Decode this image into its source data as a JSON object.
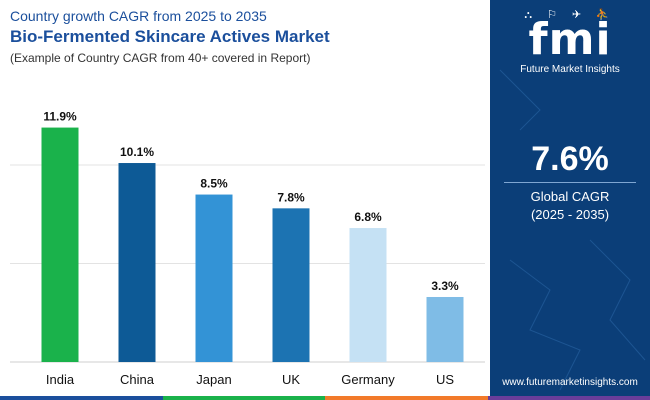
{
  "header": {
    "subtitle": "Country growth CAGR from 2025 to 2035",
    "title": "Bio-Fermented Skincare Actives Market",
    "note": "(Example of Country CAGR from 40+ covered in Report)"
  },
  "chart_data": {
    "type": "bar",
    "categories": [
      "India",
      "China",
      "Japan",
      "UK",
      "Germany",
      "US"
    ],
    "values": [
      11.9,
      10.1,
      8.5,
      7.8,
      6.8,
      3.3
    ],
    "value_labels": [
      "11.9%",
      "10.1%",
      "8.5%",
      "7.8%",
      "6.8%",
      "3.3%"
    ],
    "bar_colors": [
      "#1ab24b",
      "#0d5a96",
      "#3393d6",
      "#1c73b2",
      "#c5e1f4",
      "#7fbce6"
    ],
    "ylim": [
      0,
      12
    ],
    "grid": true,
    "legend": "none"
  },
  "panel": {
    "logo_icons": "⛬ ⚐ ✈ ⛹",
    "logo_text": "fmi",
    "brand_name": "Future Market Insights",
    "cagr_value": "7.6%",
    "cagr_label": "Global CAGR",
    "cagr_period": "(2025 - 2035)",
    "website": "www.futuremarketinsights.com"
  },
  "colors": {
    "panel_bg": "#0b3e78",
    "title": "#1b4f9c",
    "bottom_bar": [
      "#1b4f9c",
      "#1ab24b",
      "#f27a2a",
      "#6a3d9a"
    ]
  }
}
